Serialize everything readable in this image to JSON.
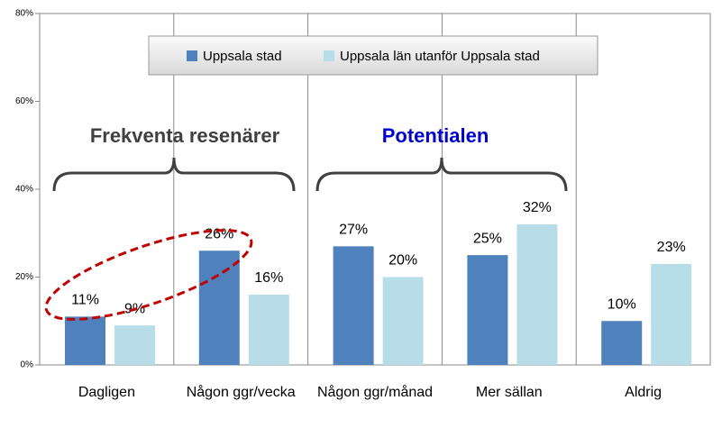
{
  "chart_data": {
    "type": "bar",
    "categories": [
      "Dagligen",
      "Någon ggr/vecka",
      "Någon ggr/månad",
      "Mer sällan",
      "Aldrig"
    ],
    "series": [
      {
        "name": "Uppsala stad",
        "color": "#4f81bd",
        "values": [
          11,
          26,
          27,
          25,
          10
        ],
        "value_labels": [
          "11%",
          "26%",
          "27%",
          "25%",
          "10%"
        ]
      },
      {
        "name": "Uppsala län utanför Uppsala stad",
        "color": "#b7dee8",
        "values": [
          9,
          16,
          20,
          32,
          23
        ],
        "value_labels": [
          "9%",
          "16%",
          "20%",
          "32%",
          "23%"
        ]
      }
    ],
    "ylim": [
      0,
      80
    ],
    "yticks": [
      {
        "value": 0,
        "label": "0%"
      },
      {
        "value": 20,
        "label": "20%"
      },
      {
        "value": 40,
        "label": "40%"
      },
      {
        "value": 60,
        "label": "60%"
      },
      {
        "value": 80,
        "label": "80%"
      }
    ],
    "annotations": [
      "Frekventa resenärer",
      "Potentialen"
    ]
  }
}
